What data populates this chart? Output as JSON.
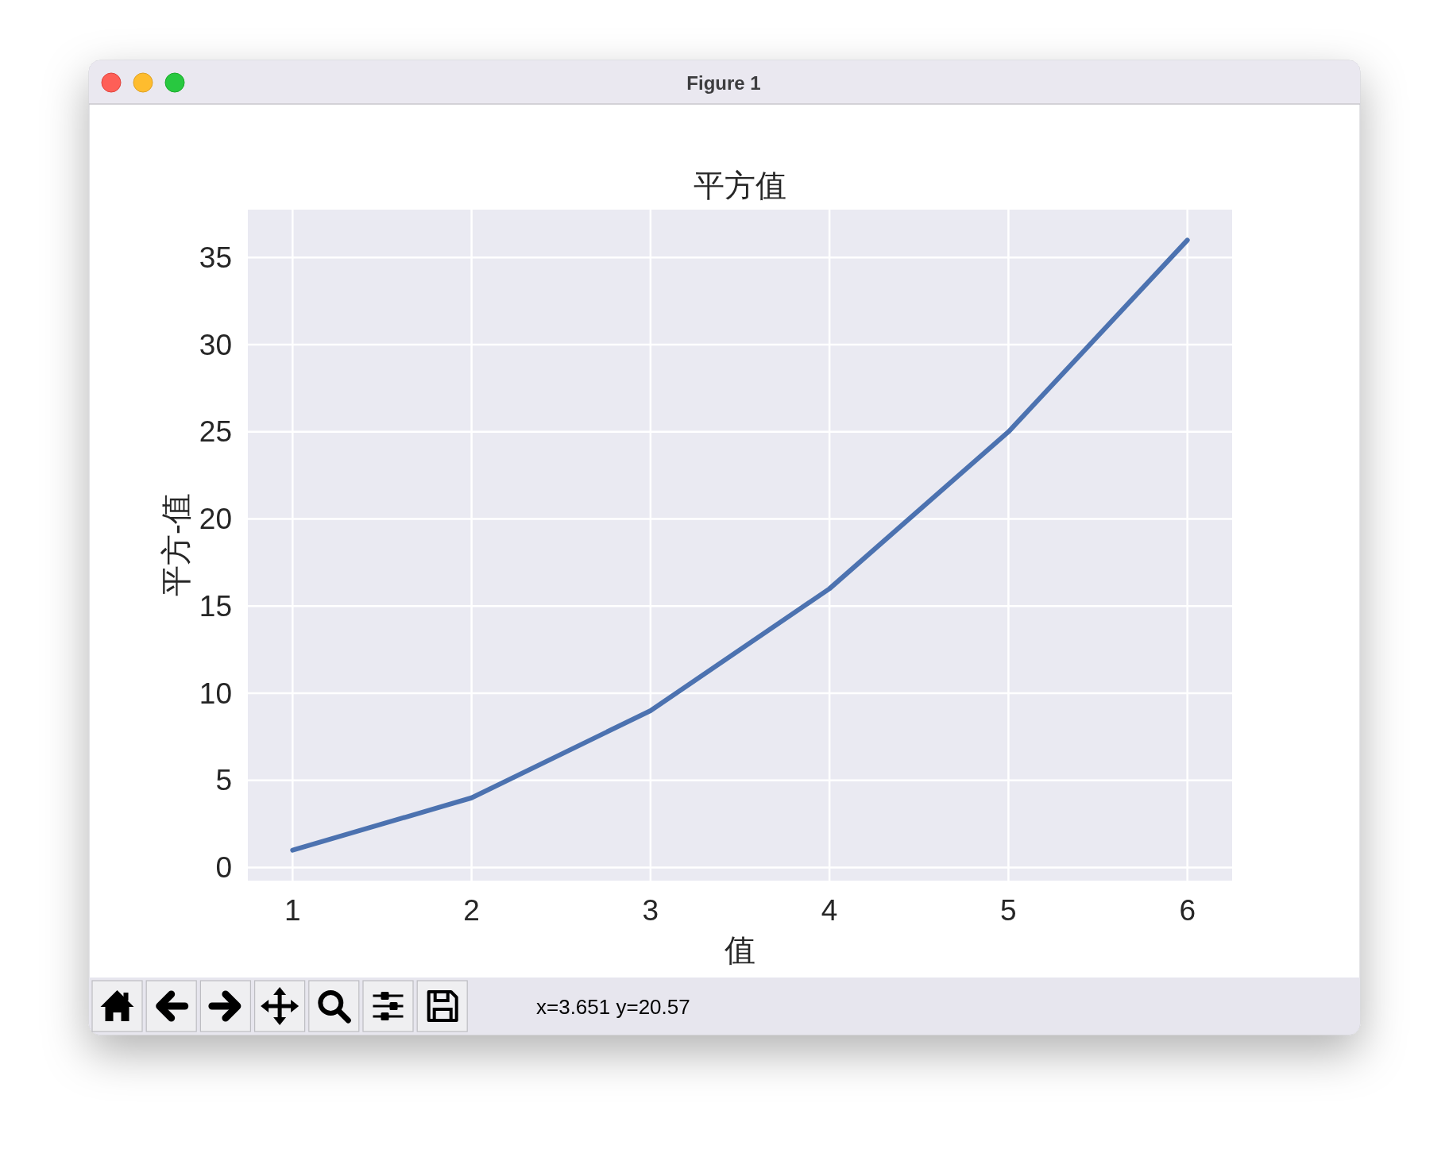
{
  "chart_data": {
    "type": "line",
    "title": "平方值",
    "xlabel": "值",
    "ylabel": "平方-值",
    "x": [
      1,
      2,
      3,
      4,
      5,
      6
    ],
    "series": [
      {
        "color": "#4c72b0",
        "values": [
          1,
          4,
          9,
          16,
          25,
          36
        ]
      }
    ],
    "xlim": [
      0.75,
      6.25
    ],
    "ylim": [
      -0.75,
      37.75
    ],
    "xticks": [
      1,
      2,
      3,
      4,
      5,
      6
    ],
    "yticks": [
      0,
      5,
      10,
      15,
      20,
      25,
      30,
      35
    ],
    "grid": true,
    "line_style": "solid",
    "annotations": [
      "Figure 1",
      "x=3.651 y=20.57"
    ]
  }
}
